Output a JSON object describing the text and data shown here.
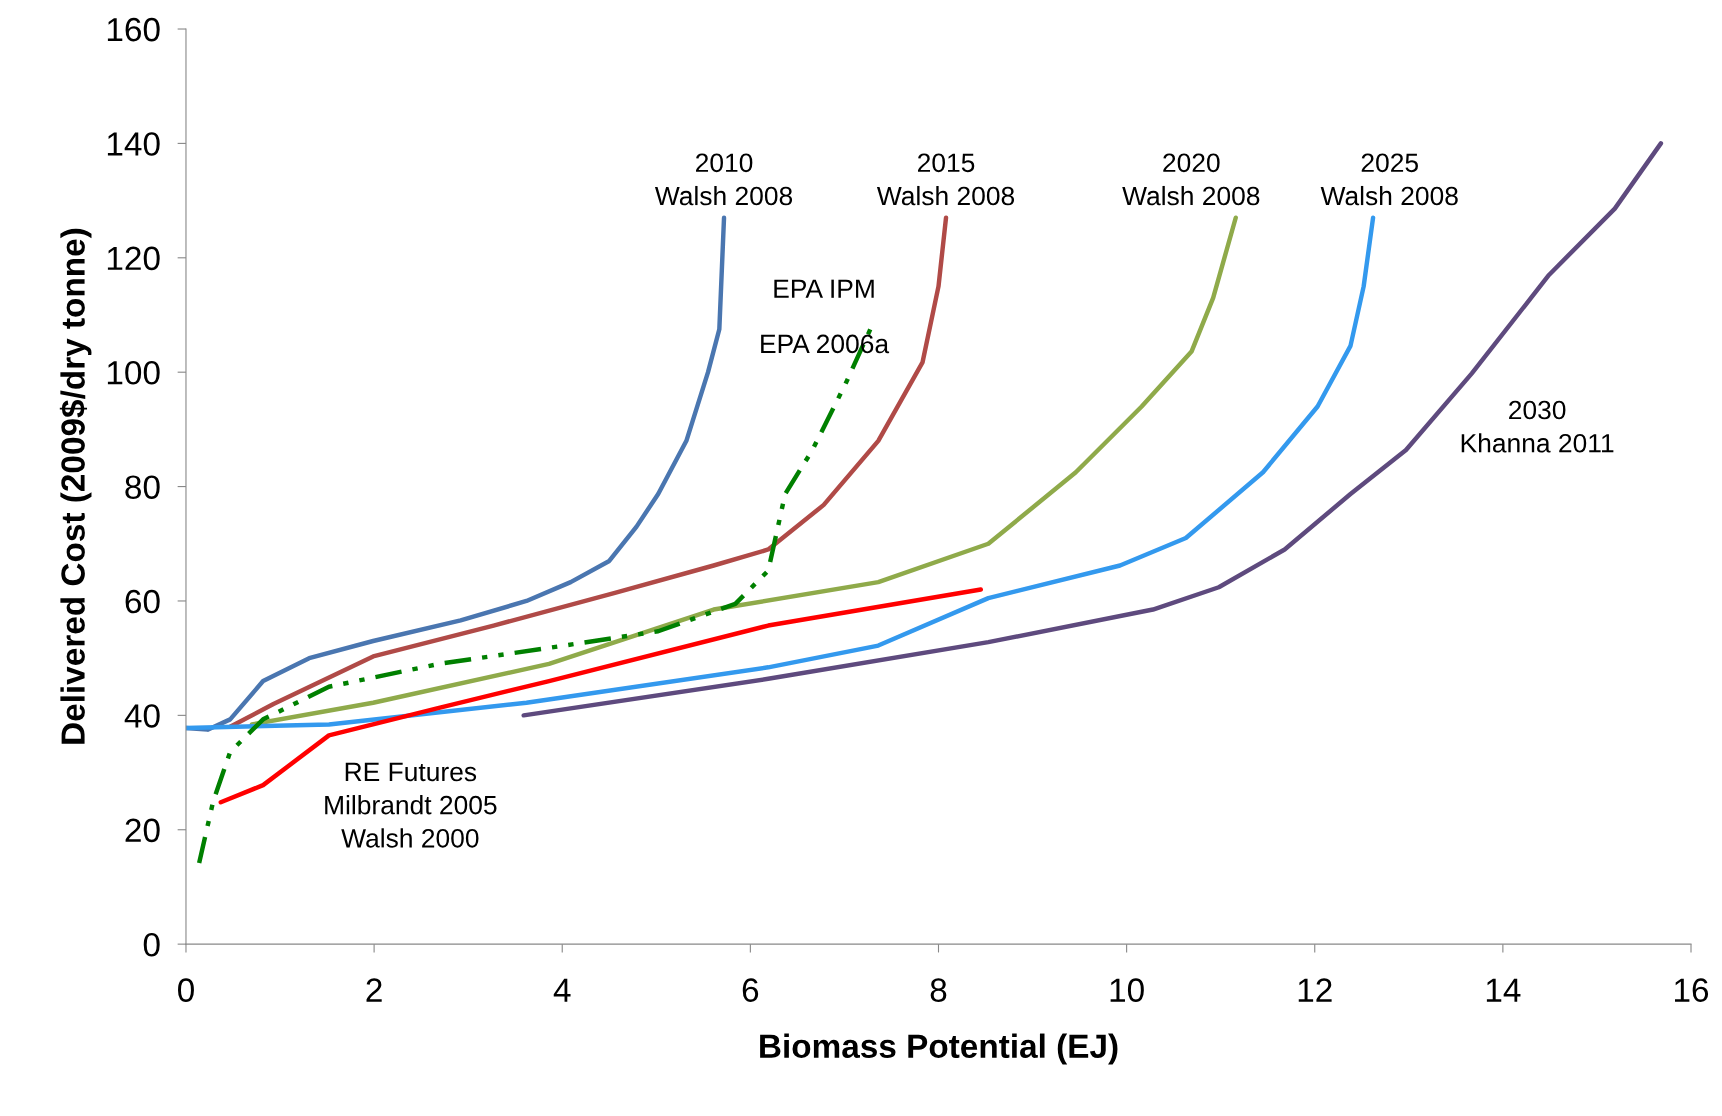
{
  "chart_data": {
    "type": "line",
    "xlabel": "Biomass Potential (EJ)",
    "ylabel": "Delivered Cost (2009$/dry tonne)",
    "xlim": [
      0,
      16
    ],
    "xticks": [
      0,
      2,
      4,
      6,
      8,
      10,
      12,
      14,
      16
    ],
    "ylim": [
      0,
      160
    ],
    "yticks": [
      0,
      20,
      40,
      60,
      80,
      100,
      120,
      140,
      160
    ],
    "grid": false,
    "legend": false,
    "marker": "none",
    "series": [
      {
        "name": "2010\nWalsh 2008",
        "color": "#4a76b0",
        "line_style": "solid",
        "x": [
          0,
          0.23,
          0.47,
          0.82,
          1.31,
          1.99,
          2.92,
          3.62,
          4.09,
          4.5,
          4.79,
          5.02,
          5.32,
          5.55,
          5.67,
          5.72
        ],
        "values": [
          37.8,
          37.5,
          39.3,
          46,
          50,
          53,
          56.6,
          60,
          63.3,
          67,
          73,
          78.7,
          88,
          100,
          107.5,
          127
        ]
      },
      {
        "name": "2015\nWalsh 2008",
        "color": "#b04a47",
        "line_style": "solid",
        "x": [
          0.47,
          0.93,
          1.99,
          3.27,
          4.56,
          5.61,
          6.19,
          6.78,
          7.36,
          7.83,
          8.0,
          8.08
        ],
        "values": [
          38,
          42,
          50.3,
          55.7,
          61.4,
          66.2,
          69,
          76.8,
          88,
          101.7,
          115,
          127
        ]
      },
      {
        "name": "2020\nWalsh 2008",
        "color": "#8faa4a",
        "line_style": "solid",
        "x": [
          0.7,
          1.99,
          3.86,
          5.61,
          7.36,
          8.53,
          9.46,
          10.16,
          10.69,
          10.92,
          11.16
        ],
        "values": [
          38.4,
          42.2,
          49,
          58.5,
          63.3,
          70,
          82.5,
          94,
          103.6,
          113,
          127
        ]
      },
      {
        "name": "2025\nWalsh 2008",
        "color": "#3399ee",
        "line_style": "solid",
        "x": [
          0,
          1.52,
          3.62,
          6.19,
          7.36,
          8.53,
          9.93,
          10.63,
          11.45,
          12.03,
          12.38,
          12.52,
          12.62
        ],
        "values": [
          37.8,
          38.4,
          42.2,
          48.4,
          52.2,
          60.5,
          66.2,
          71,
          82.5,
          94,
          104.6,
          115,
          127
        ]
      },
      {
        "name": "2030\nKhanna 2011",
        "color": "#5e4a7e",
        "line_style": "solid",
        "x": [
          3.59,
          6.19,
          8.53,
          10.28,
          10.98,
          11.68,
          12.38,
          12.97,
          13.67,
          14.49,
          15.19,
          15.68
        ],
        "values": [
          40,
          46.4,
          52.8,
          58.5,
          62.4,
          69,
          78.7,
          86.4,
          99.8,
          117,
          128.6,
          140
        ]
      },
      {
        "name": "RE Futures\nMilbrandt 2005\nWalsh 2000",
        "color": "#ff0000",
        "line_style": "solid",
        "x": [
          0.37,
          0.82,
          1.52,
          2.69,
          3.86,
          6.19,
          8.45
        ],
        "values": [
          24.8,
          27.8,
          36.5,
          41.3,
          46,
          55.7,
          62
        ]
      },
      {
        "name": "EPA IPM\nEPA 2006a",
        "color": "#008000",
        "line_style": "dashdot",
        "x": [
          0.14,
          0.29,
          0.47,
          0.82,
          1.52,
          2.69,
          3.86,
          5.02,
          5.84,
          6.19,
          6.37,
          6.66,
          7.01,
          7.3
        ],
        "values": [
          14.2,
          25,
          33.6,
          39.3,
          45,
          49,
          51.8,
          54.7,
          59.5,
          65.3,
          78.7,
          86.4,
          97.9,
          108.4
        ]
      }
    ]
  }
}
